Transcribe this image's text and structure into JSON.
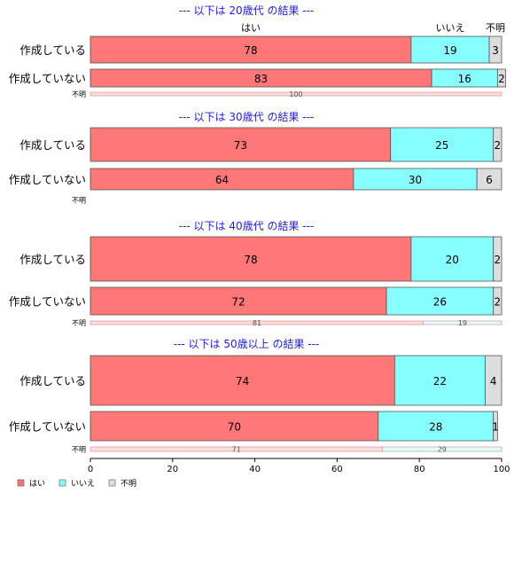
{
  "chart_data": {
    "type": "bar",
    "orientation": "horizontal",
    "stacked": "percent",
    "xlim": [
      0,
      100
    ],
    "xticks": [
      "0",
      "20",
      "40",
      "60",
      "80",
      "100"
    ],
    "column_headers": [
      "はい",
      "いいえ",
      "不明"
    ],
    "legend": {
      "placement": "bottom-left",
      "entries": [
        {
          "name": "はい",
          "color": "#ff7777"
        },
        {
          "name": "いいえ",
          "color": "#88ffff"
        },
        {
          "name": "不明",
          "color": "#dddddd"
        }
      ]
    },
    "colors": [
      "#ff7777",
      "#88ffff",
      "#dddddd"
    ],
    "groups": [
      {
        "title": "--- 以下は 20歳代 の結果 ---",
        "rows": [
          {
            "category": "作成している",
            "values": [
              78,
              19,
              3
            ],
            "labels": [
              "78",
              "19",
              "3"
            ]
          },
          {
            "category": "作成していない",
            "values": [
              83,
              16,
              2
            ],
            "labels": [
              "83",
              "16",
              "2"
            ]
          },
          {
            "category": "不明",
            "values": [
              100,
              0,
              0
            ],
            "labels": [
              "100",
              "",
              ""
            ]
          }
        ]
      },
      {
        "title": "--- 以下は 30歳代 の結果 ---",
        "rows": [
          {
            "category": "作成している",
            "values": [
              73,
              25,
              2
            ],
            "labels": [
              "73",
              "25",
              "2"
            ]
          },
          {
            "category": "作成していない",
            "values": [
              64,
              30,
              6
            ],
            "labels": [
              "64",
              "30",
              "6"
            ]
          },
          {
            "category": "不明",
            "values": [
              0,
              0,
              0
            ],
            "labels": [
              "",
              "",
              ""
            ]
          }
        ]
      },
      {
        "title": "--- 以下は 40歳代 の結果 ---",
        "rows": [
          {
            "category": "作成している",
            "values": [
              78,
              20,
              2
            ],
            "labels": [
              "78",
              "20",
              "2"
            ]
          },
          {
            "category": "作成していない",
            "values": [
              72,
              26,
              2
            ],
            "labels": [
              "72",
              "26",
              "2"
            ]
          },
          {
            "category": "不明",
            "values": [
              81,
              19,
              0
            ],
            "labels": [
              "81",
              "19",
              ""
            ]
          }
        ]
      },
      {
        "title": "--- 以下は 50歳以上 の結果 ---",
        "rows": [
          {
            "category": "作成している",
            "values": [
              74,
              22,
              4
            ],
            "labels": [
              "74",
              "22",
              "4"
            ]
          },
          {
            "category": "作成していない",
            "values": [
              70,
              28,
              1
            ],
            "labels": [
              "70",
              "28",
              "1"
            ]
          },
          {
            "category": "不明",
            "values": [
              71,
              29,
              0
            ],
            "labels": [
              "71",
              "29",
              ""
            ]
          }
        ]
      }
    ]
  }
}
